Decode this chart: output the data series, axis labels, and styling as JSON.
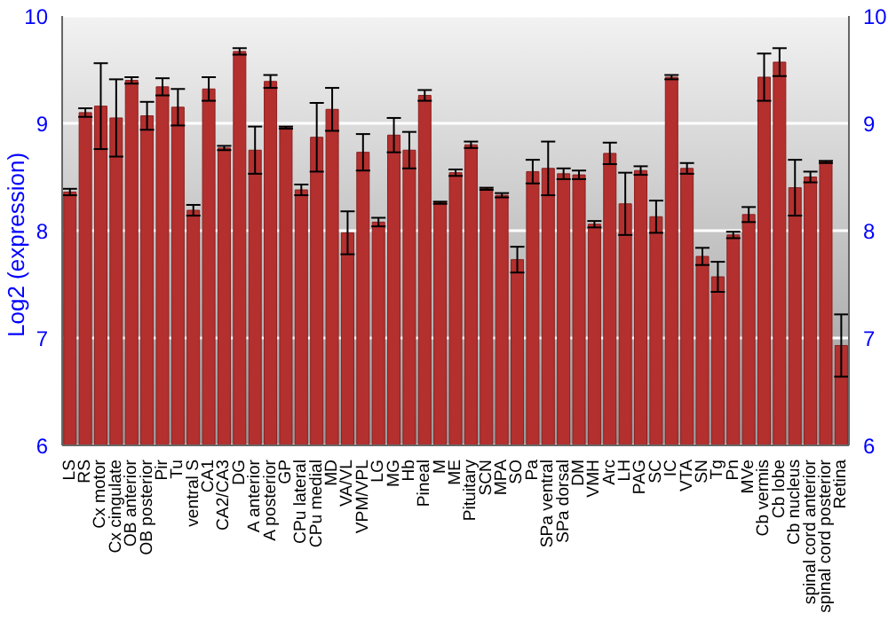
{
  "chart_data": {
    "type": "bar",
    "ylabel": "Log2 (expression)",
    "categories": [
      "LS",
      "RS",
      "Cx motor",
      "Cx cingulate",
      "OB anterior",
      "OB posterior",
      "Pir",
      "Tu",
      "ventral S",
      "CA1",
      "CA2/CA3",
      "DG",
      "A anterior",
      "A posterior",
      "GP",
      "CPu lateral",
      "CPu medial",
      "MD",
      "VA/VL",
      "VPM/VPL",
      "LG",
      "MG",
      "Hb",
      "Pineal",
      "M",
      "ME",
      "Pituitary",
      "SCN",
      "MPA",
      "SO",
      "Pa",
      "SPa ventral",
      "SPa dorsal",
      "DM",
      "VMH",
      "Arc",
      "LH",
      "PAG",
      "SC",
      "IC",
      "VTA",
      "SN",
      "Tg",
      "Pn",
      "MVe",
      "Cb vermis",
      "Cb lobe",
      "Cb nucleus",
      "spinal cord anterior",
      "spinal cord posterior",
      "Retina"
    ],
    "values": [
      8.36,
      9.1,
      9.16,
      9.05,
      9.4,
      9.07,
      9.34,
      9.15,
      8.19,
      9.32,
      8.77,
      9.67,
      8.75,
      9.39,
      8.96,
      8.38,
      8.87,
      9.13,
      7.98,
      8.73,
      8.08,
      8.89,
      8.75,
      9.26,
      8.26,
      8.54,
      8.8,
      8.39,
      8.33,
      7.73,
      8.55,
      8.58,
      8.53,
      8.52,
      8.06,
      8.72,
      8.25,
      8.56,
      8.13,
      9.43,
      8.58,
      7.76,
      7.57,
      7.96,
      8.15,
      9.43,
      9.57,
      8.4,
      8.5,
      8.64,
      6.93
    ],
    "errors": [
      0.03,
      0.04,
      0.4,
      0.36,
      0.03,
      0.13,
      0.08,
      0.17,
      0.05,
      0.11,
      0.02,
      0.03,
      0.22,
      0.06,
      0.01,
      0.05,
      0.32,
      0.2,
      0.2,
      0.17,
      0.04,
      0.16,
      0.17,
      0.05,
      0.01,
      0.03,
      0.03,
      0.01,
      0.02,
      0.12,
      0.11,
      0.25,
      0.05,
      0.04,
      0.03,
      0.1,
      0.29,
      0.04,
      0.15,
      0.02,
      0.05,
      0.08,
      0.14,
      0.03,
      0.07,
      0.22,
      0.13,
      0.26,
      0.05,
      0.01,
      0.29
    ],
    "color": "#b3302f",
    "ylim": [
      6,
      10
    ],
    "yticks": [
      6,
      7,
      8,
      9,
      10
    ],
    "y2lim": [
      6,
      10
    ],
    "y2ticks": [
      6,
      7,
      8,
      9,
      10
    ],
    "grid": "y"
  }
}
